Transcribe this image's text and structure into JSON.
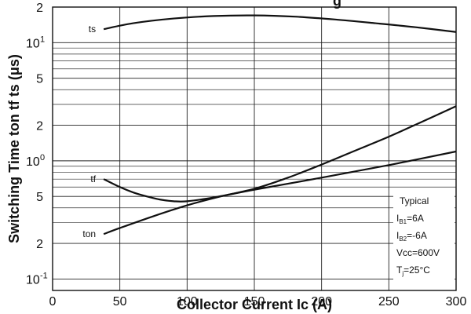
{
  "chart_data": {
    "type": "line",
    "title_fragment": "g",
    "xlabel": "Collector Current Ic (A)",
    "ylabel": "Switching Time ton tf ts (μs)",
    "x_scale": "linear",
    "y_scale": "log",
    "xlim": [
      0,
      300
    ],
    "ylim": [
      0.08,
      20
    ],
    "grid": true,
    "x_ticks": [
      {
        "value": 0,
        "label": "0"
      },
      {
        "value": 50,
        "label": "50"
      },
      {
        "value": 100,
        "label": "100"
      },
      {
        "value": 150,
        "label": "150"
      },
      {
        "value": 200,
        "label": "200"
      },
      {
        "value": 250,
        "label": "250"
      },
      {
        "value": 300,
        "label": "300"
      }
    ],
    "y_ticks": [
      {
        "value": 0.1,
        "base": "10",
        "exp": "-1"
      },
      {
        "value": 0.2,
        "base": "2",
        "exp": ""
      },
      {
        "value": 0.5,
        "base": "5",
        "exp": ""
      },
      {
        "value": 1,
        "base": "10",
        "exp": "0"
      },
      {
        "value": 2,
        "base": "2",
        "exp": ""
      },
      {
        "value": 5,
        "base": "5",
        "exp": ""
      },
      {
        "value": 10,
        "base": "10",
        "exp": "1"
      },
      {
        "value": 20,
        "base": "2",
        "exp": ""
      }
    ],
    "y_minor_ticks": [
      0.3,
      0.4,
      0.6,
      0.7,
      0.8,
      0.9,
      3,
      4,
      6,
      7,
      8,
      9
    ],
    "series": [
      {
        "name": "ts",
        "x": [
          38,
          60,
          90,
          120,
          150,
          180,
          210,
          240,
          270,
          300
        ],
        "y": [
          13.0,
          14.6,
          16.0,
          16.8,
          17.0,
          16.6,
          15.7,
          14.6,
          13.5,
          12.3
        ]
      },
      {
        "name": "tf",
        "x": [
          38,
          50,
          60,
          70,
          80,
          90,
          100,
          120,
          150,
          200,
          250,
          300
        ],
        "y": [
          0.7,
          0.6,
          0.54,
          0.5,
          0.47,
          0.455,
          0.455,
          0.49,
          0.57,
          0.72,
          0.92,
          1.2
        ]
      },
      {
        "name": "ton",
        "x": [
          38,
          50,
          75,
          100,
          125,
          150,
          175,
          200,
          225,
          250,
          275,
          300
        ],
        "y": [
          0.24,
          0.27,
          0.34,
          0.42,
          0.5,
          0.58,
          0.72,
          0.93,
          1.22,
          1.6,
          2.15,
          2.9
        ]
      }
    ],
    "annotation": {
      "lines": [
        {
          "main": "Typical",
          "sub": "",
          "rest": ""
        },
        {
          "main": "I",
          "sub": "B1",
          "rest": "=6A"
        },
        {
          "main": "I",
          "sub": "B2",
          "rest": "=-6A"
        },
        {
          "main": "Vcc=600V",
          "sub": "",
          "rest": ""
        },
        {
          "main": "T",
          "sub": "j",
          "rest": "=25°C"
        }
      ]
    }
  }
}
